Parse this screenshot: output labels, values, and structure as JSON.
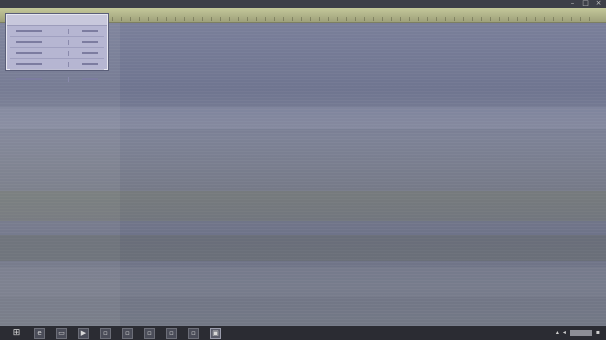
{
  "window": {
    "title_readable": false,
    "controls": [
      "minimize-icon",
      "maximize-icon",
      "close-icon"
    ]
  },
  "measurement_panel": {
    "header_readable": false,
    "row_count": 5,
    "rows_readable": false
  },
  "taskbar": {
    "start_icon": "windows-start-icon",
    "apps": [
      "internet-explorer-icon",
      "file-explorer-icon",
      "media-player-icon",
      "app-icon",
      "app-icon",
      "app-icon",
      "app-icon",
      "app-icon",
      "viewer-app-icon"
    ],
    "active_app_index": 8,
    "tray_icons": [
      "network-icon",
      "volume-icon",
      "notification-icon"
    ]
  },
  "colors": {
    "viewer_background": "#747a96",
    "header_strip": "#c4c89a",
    "panel_background": "#b6b6d2",
    "taskbar": "#2b2c33"
  }
}
